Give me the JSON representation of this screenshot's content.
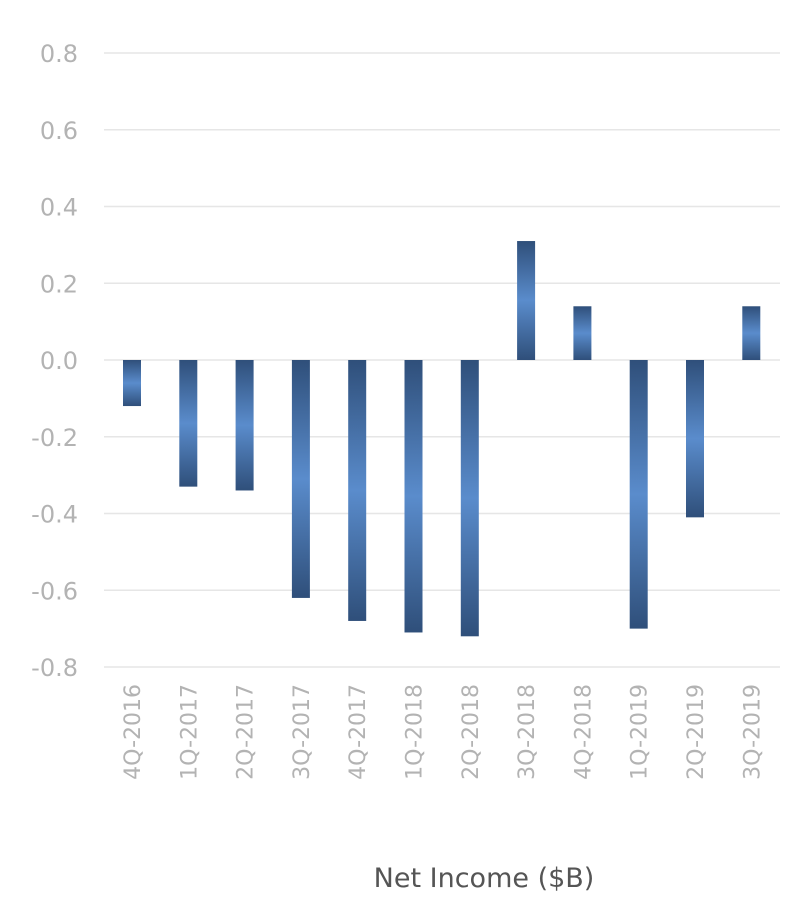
{
  "chart_data": {
    "type": "bar",
    "title": "",
    "xlabel": "Net Income ($B)",
    "ylabel": "",
    "ylim": [
      -0.8,
      0.8
    ],
    "yticks": [
      "0.8",
      "0.6",
      "0.4",
      "0.2",
      "0.0",
      "-0.2",
      "-0.4",
      "-0.6",
      "-0.8"
    ],
    "ytick_values": [
      0.8,
      0.6,
      0.4,
      0.2,
      0.0,
      -0.2,
      -0.4,
      -0.6,
      -0.8
    ],
    "categories": [
      "4Q-2016",
      "1Q-2017",
      "2Q-2017",
      "3Q-2017",
      "4Q-2017",
      "1Q-2018",
      "2Q-2018",
      "3Q-2018",
      "4Q-2018",
      "1Q-2019",
      "2Q-2019",
      "3Q-2019"
    ],
    "values": [
      -0.12,
      -0.33,
      -0.34,
      -0.62,
      -0.68,
      -0.71,
      -0.72,
      0.31,
      0.14,
      -0.7,
      -0.41,
      0.14
    ],
    "grid": true,
    "colors": {
      "bar_light": "#5a8ccc",
      "bar_dark": "#2f4f7a",
      "grid": "#e6e6e6",
      "tick": "#b3b3b3"
    }
  }
}
